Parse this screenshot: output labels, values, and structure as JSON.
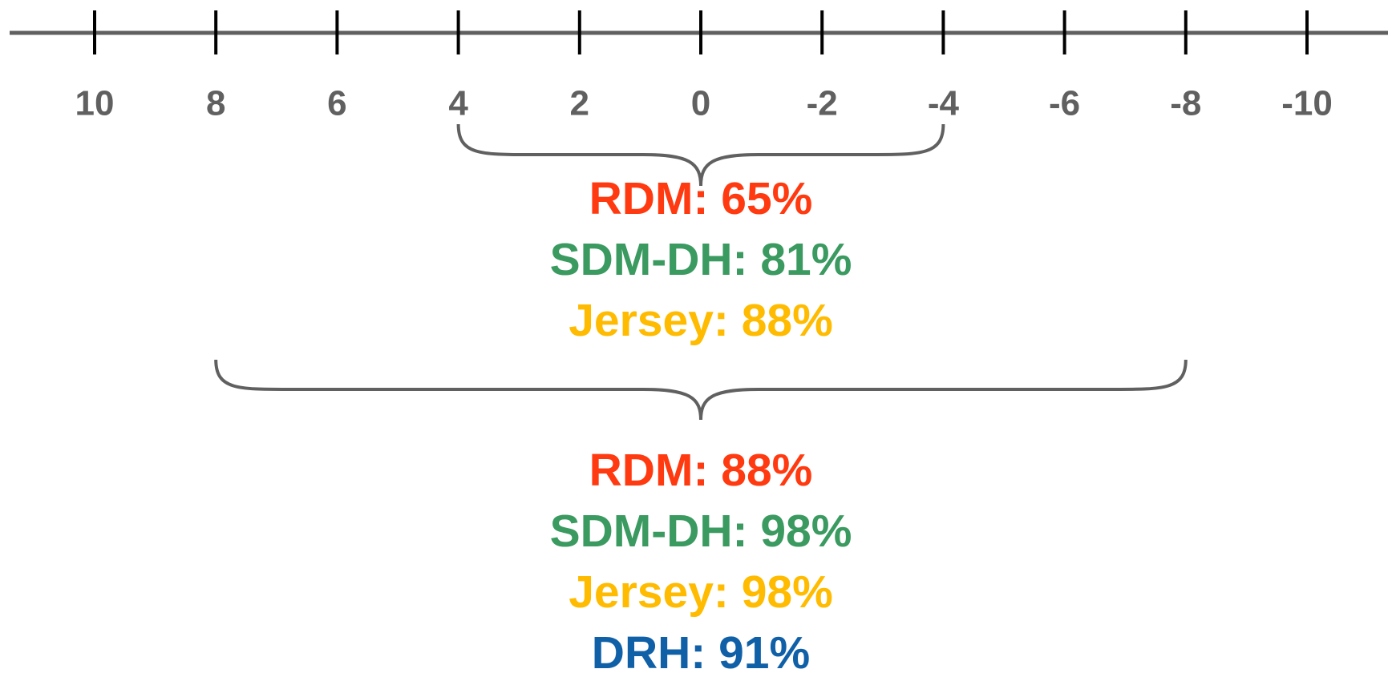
{
  "number_line": {
    "ticks": [
      10,
      8,
      6,
      4,
      2,
      0,
      -2,
      -4,
      -6,
      -8,
      -10
    ]
  },
  "groups": [
    {
      "span": [
        4,
        -4
      ],
      "items": [
        {
          "label": "RDM: 65%",
          "color": "#ff3a10"
        },
        {
          "label": "SDM-DH: 81%",
          "color": "#3a9a60"
        },
        {
          "label": "Jersey: 88%",
          "color": "#ffbb00"
        }
      ]
    },
    {
      "span": [
        8,
        -8
      ],
      "items": [
        {
          "label": "RDM: 88%",
          "color": "#ff3a10"
        },
        {
          "label": "SDM-DH: 98%",
          "color": "#3a9a60"
        },
        {
          "label": "Jersey: 98%",
          "color": "#ffbb00"
        },
        {
          "label": "DRH: 91%",
          "color": "#1060a8"
        }
      ]
    }
  ]
}
